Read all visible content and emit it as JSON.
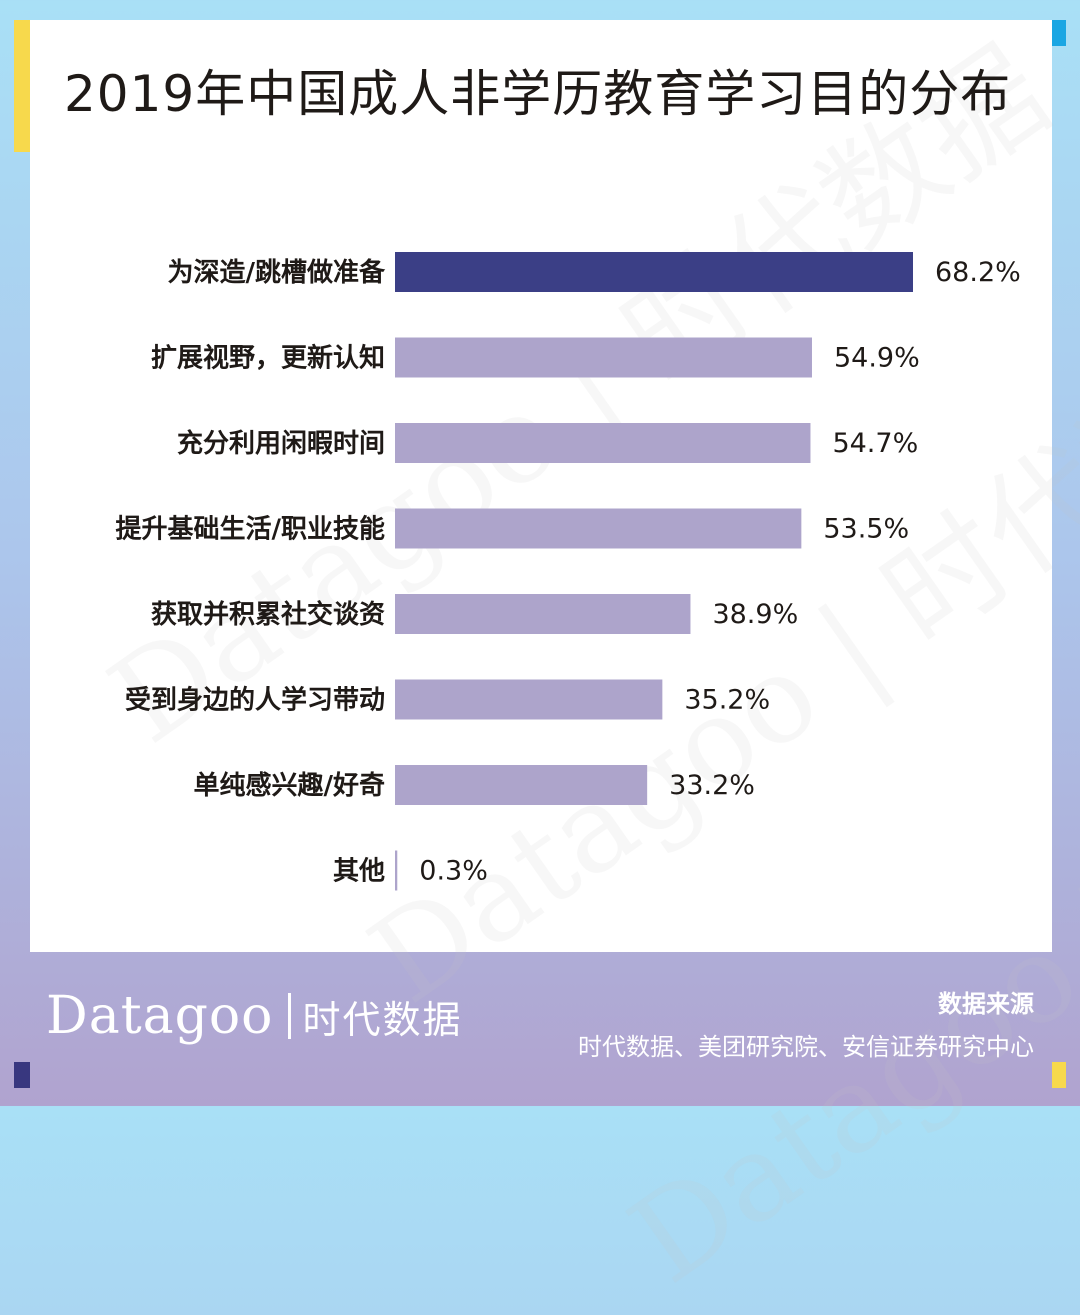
{
  "title": "2019年中国成人非学历教育学习目的分布",
  "chart_data": {
    "type": "bar",
    "orientation": "horizontal",
    "categories": [
      "为深造/跳槽做准备",
      "扩展视野，更新认知",
      "充分利用闲暇时间",
      "提升基础生活/职业技能",
      "获取并积累社交谈资",
      "受到身边的人学习带动",
      "单纯感兴趣/好奇",
      "其他"
    ],
    "values": [
      68.2,
      54.9,
      54.7,
      53.5,
      38.9,
      35.2,
      33.2,
      0.3
    ],
    "value_labels": [
      "68.2%",
      "54.9%",
      "54.7%",
      "53.5%",
      "38.9%",
      "35.2%",
      "33.2%",
      "0.3%"
    ],
    "unit": "%",
    "xlim": [
      0,
      68.2
    ],
    "highlight_index": 0,
    "colors": {
      "highlight": "#3b3f86",
      "bar": "#ada4cb"
    },
    "grid": false,
    "legend": "none"
  },
  "brand": {
    "latin": "Datagoo",
    "cn": "时代数据"
  },
  "watermark": "Datagoo | 时代数据",
  "source": {
    "title": "数据来源",
    "text": "时代数据、美团研究院、安信证券研究中心"
  },
  "colors": {
    "accent_yellow": "#f7d94c",
    "accent_blue": "#1aa6e3",
    "accent_navy": "#38377f",
    "title": "#1f1a17"
  }
}
